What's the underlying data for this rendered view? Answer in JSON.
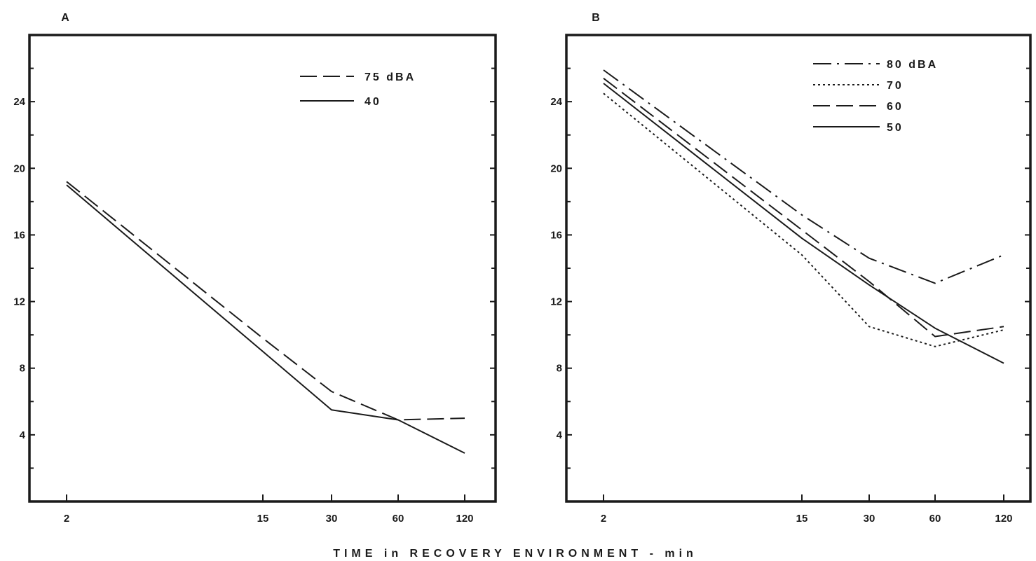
{
  "xlabel": "TIME in RECOVERY ENVIRONMENT - min",
  "chart_data": [
    {
      "type": "line",
      "panel_label": "A",
      "x": [
        2,
        15,
        30,
        60,
        120
      ],
      "x_tick_labels": [
        "2",
        "15",
        "30",
        "60",
        "120"
      ],
      "y_ticks": [
        4,
        8,
        12,
        16,
        20,
        24
      ],
      "ylim": [
        0,
        28
      ],
      "legend_placement": "top-right",
      "series": [
        {
          "name": "75 dBA",
          "dash": "long-dash",
          "values": [
            19.2,
            9.8,
            6.6,
            4.9,
            5.0
          ]
        },
        {
          "name": "40",
          "dash": "solid",
          "values": [
            19.0,
            9.0,
            5.5,
            4.9,
            2.9
          ]
        }
      ]
    },
    {
      "type": "line",
      "panel_label": "B",
      "x": [
        2,
        15,
        30,
        60,
        120
      ],
      "x_tick_labels": [
        "2",
        "15",
        "30",
        "60",
        "120"
      ],
      "y_ticks": [
        4,
        8,
        12,
        16,
        20,
        24
      ],
      "ylim": [
        0,
        28
      ],
      "legend_placement": "top-right",
      "series": [
        {
          "name": "80 dBA",
          "dash": "dash-dot",
          "values": [
            25.9,
            17.2,
            14.6,
            13.1,
            14.8
          ]
        },
        {
          "name": "70",
          "dash": "dotted",
          "values": [
            24.5,
            14.8,
            10.5,
            9.3,
            10.3
          ]
        },
        {
          "name": "60",
          "dash": "long-dash",
          "values": [
            25.4,
            16.3,
            13.2,
            9.9,
            10.5
          ]
        },
        {
          "name": "50",
          "dash": "solid",
          "values": [
            25.1,
            15.8,
            13.0,
            10.4,
            8.3
          ]
        }
      ]
    }
  ]
}
